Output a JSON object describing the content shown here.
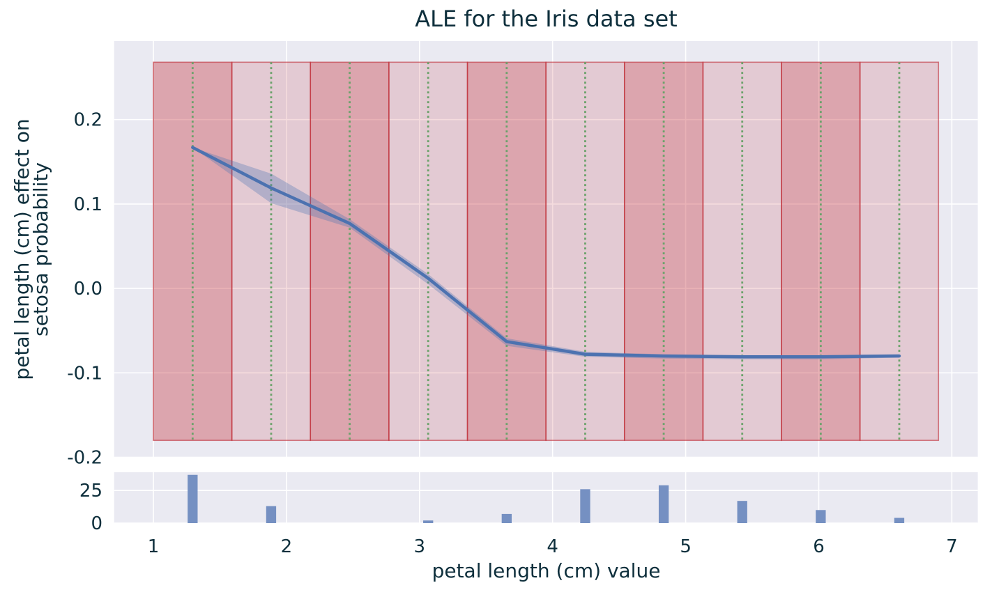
{
  "figure": {
    "title": "ALE for the Iris data set"
  },
  "colors": {
    "background": "#ffffff",
    "plot_background": "#eaeaf2",
    "grid": "#ffffff",
    "text": "#0e2f3c",
    "ale_line": "#4c72b0",
    "confidence_band": "rgba(76,114,176,0.32)",
    "band_dark": "rgba(199,62,72,0.40)",
    "band_light": "rgba(199,62,72,0.18)",
    "band_edge": "rgba(190,40,50,0.60)",
    "quantile_line": "#6aa26a",
    "histogram_bar": "#7590c2"
  },
  "chart_data": {
    "type": "line",
    "title": "ALE for the Iris data set",
    "xlabel": "petal length (cm) value",
    "ylabel_lines": [
      "petal length (cm) effect on",
      "setosa probability"
    ],
    "legend": "none",
    "grid": true,
    "xlim": [
      0.705,
      7.195
    ],
    "xtick_values": [
      1,
      2,
      3,
      4,
      5,
      6,
      7
    ],
    "xtick_labels": [
      "1",
      "2",
      "3",
      "4",
      "5",
      "6",
      "7"
    ],
    "main_panel": {
      "ylim": [
        -0.2,
        0.293
      ],
      "ytick_values": [
        0.2,
        0.1,
        0.0,
        -0.1,
        -0.2
      ],
      "ytick_labels": [
        "0.2",
        "0.1",
        "0.0",
        "-0.1",
        "-0.2"
      ],
      "bin_edges": [
        1.0,
        1.59,
        2.18,
        2.77,
        3.36,
        3.95,
        4.54,
        5.13,
        5.72,
        6.31,
        6.9
      ],
      "band_y_span": [
        -0.18,
        0.268
      ],
      "ale": {
        "x": [
          1.295,
          1.885,
          2.475,
          3.065,
          3.655,
          4.245,
          4.835,
          5.425,
          6.015,
          6.605
        ],
        "y": [
          0.167,
          0.119,
          0.077,
          0.012,
          -0.063,
          -0.078,
          -0.08,
          -0.081,
          -0.081,
          -0.08
        ],
        "ci_lower": [
          0.167,
          0.101,
          0.072,
          0.005,
          -0.068,
          -0.081,
          -0.083,
          -0.084,
          -0.084,
          -0.082
        ],
        "ci_upper": [
          0.167,
          0.136,
          0.082,
          0.017,
          -0.059,
          -0.075,
          -0.078,
          -0.079,
          -0.079,
          -0.078
        ]
      }
    },
    "hist_panel": {
      "ylim": [
        0,
        39
      ],
      "ytick_values": [
        0,
        25
      ],
      "ytick_labels": [
        "0",
        "25"
      ],
      "x": [
        1.295,
        1.885,
        2.475,
        3.065,
        3.655,
        4.245,
        4.835,
        5.425,
        6.015,
        6.605
      ],
      "counts": [
        37,
        13,
        0,
        2,
        7,
        26,
        29,
        17,
        10,
        4
      ],
      "bar_width": 0.075
    }
  }
}
